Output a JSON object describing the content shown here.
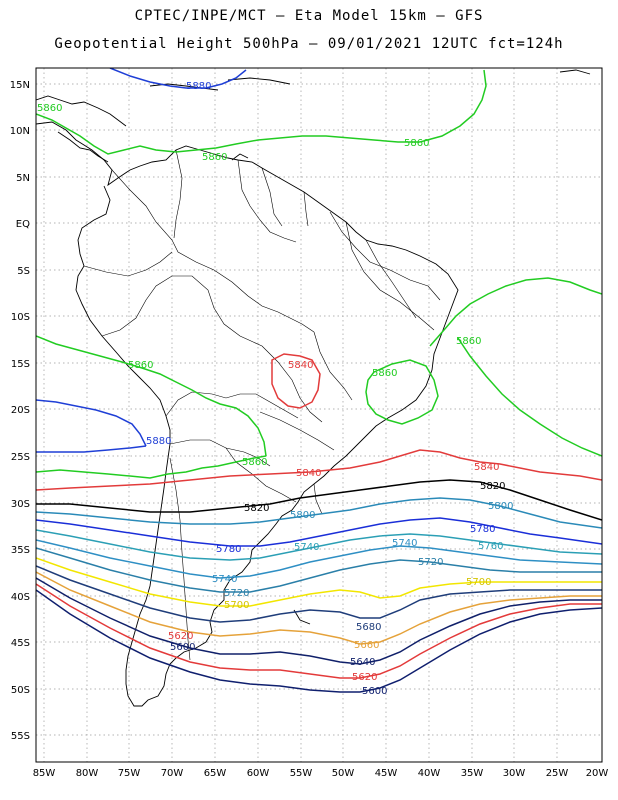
{
  "title_line1": "CPTEC/INPE/MCT —  Eta Model 15km — GFS",
  "title_line2": "Geopotential Height 500hPa — 09/01/2021 12UTC fct=124h",
  "lat_labels": [
    "15N",
    "10N",
    "5N",
    "EQ",
    "5S",
    "10S",
    "15S",
    "20S",
    "25S",
    "30S",
    "35S",
    "40S",
    "45S",
    "50S",
    "55S"
  ],
  "lon_labels": [
    "85W",
    "80W",
    "75W",
    "70W",
    "65W",
    "60W",
    "55W",
    "50W",
    "45W",
    "40W",
    "35W",
    "30W",
    "25W",
    "20W"
  ],
  "colors": {
    "c5880": "#1f3fd6",
    "c5860": "#22cc22",
    "c5840": "#e23b3b",
    "c5820": "#000000",
    "c5800": "#2a8ab8",
    "c5780": "#1a2ed8",
    "c5760": "#2b9fb5",
    "c5740": "#2e8fc4",
    "c5720": "#2a7fa8",
    "c5700": "#f2e600",
    "c5680": "#1f3d7a",
    "c5660": "#e5a23a",
    "c5640": "#10206a",
    "c5620": "#e33a3a",
    "c5600": "#0f1f6e"
  },
  "contour_labels": {
    "l5880a": "5880",
    "l5860a": "5860",
    "l5860b": "5860",
    "l5860c": "5860",
    "l5860d": "5860",
    "l5860e": "5860",
    "l5880b": "5880",
    "l5860f": "5860",
    "l5840a": "5840",
    "l5840b": "5840",
    "l5840c": "5840",
    "l5820a": "5820",
    "l5820b": "5820",
    "l5800a": "5800",
    "l5800b": "5800",
    "l5780a": "5780",
    "l5780b": "5780",
    "l5760a": "5760",
    "l5760b": "5760",
    "l5740a": "5740",
    "l5740b": "5740",
    "l5720a": "5720",
    "l5720b": "5720",
    "l5700a": "5700",
    "l5700b": "5700",
    "l5680": "5680",
    "l5660": "5660",
    "l5640": "5640",
    "l5620a": "5620",
    "l5620b": "5620",
    "l5600a": "5600",
    "l5600b": "5600"
  }
}
